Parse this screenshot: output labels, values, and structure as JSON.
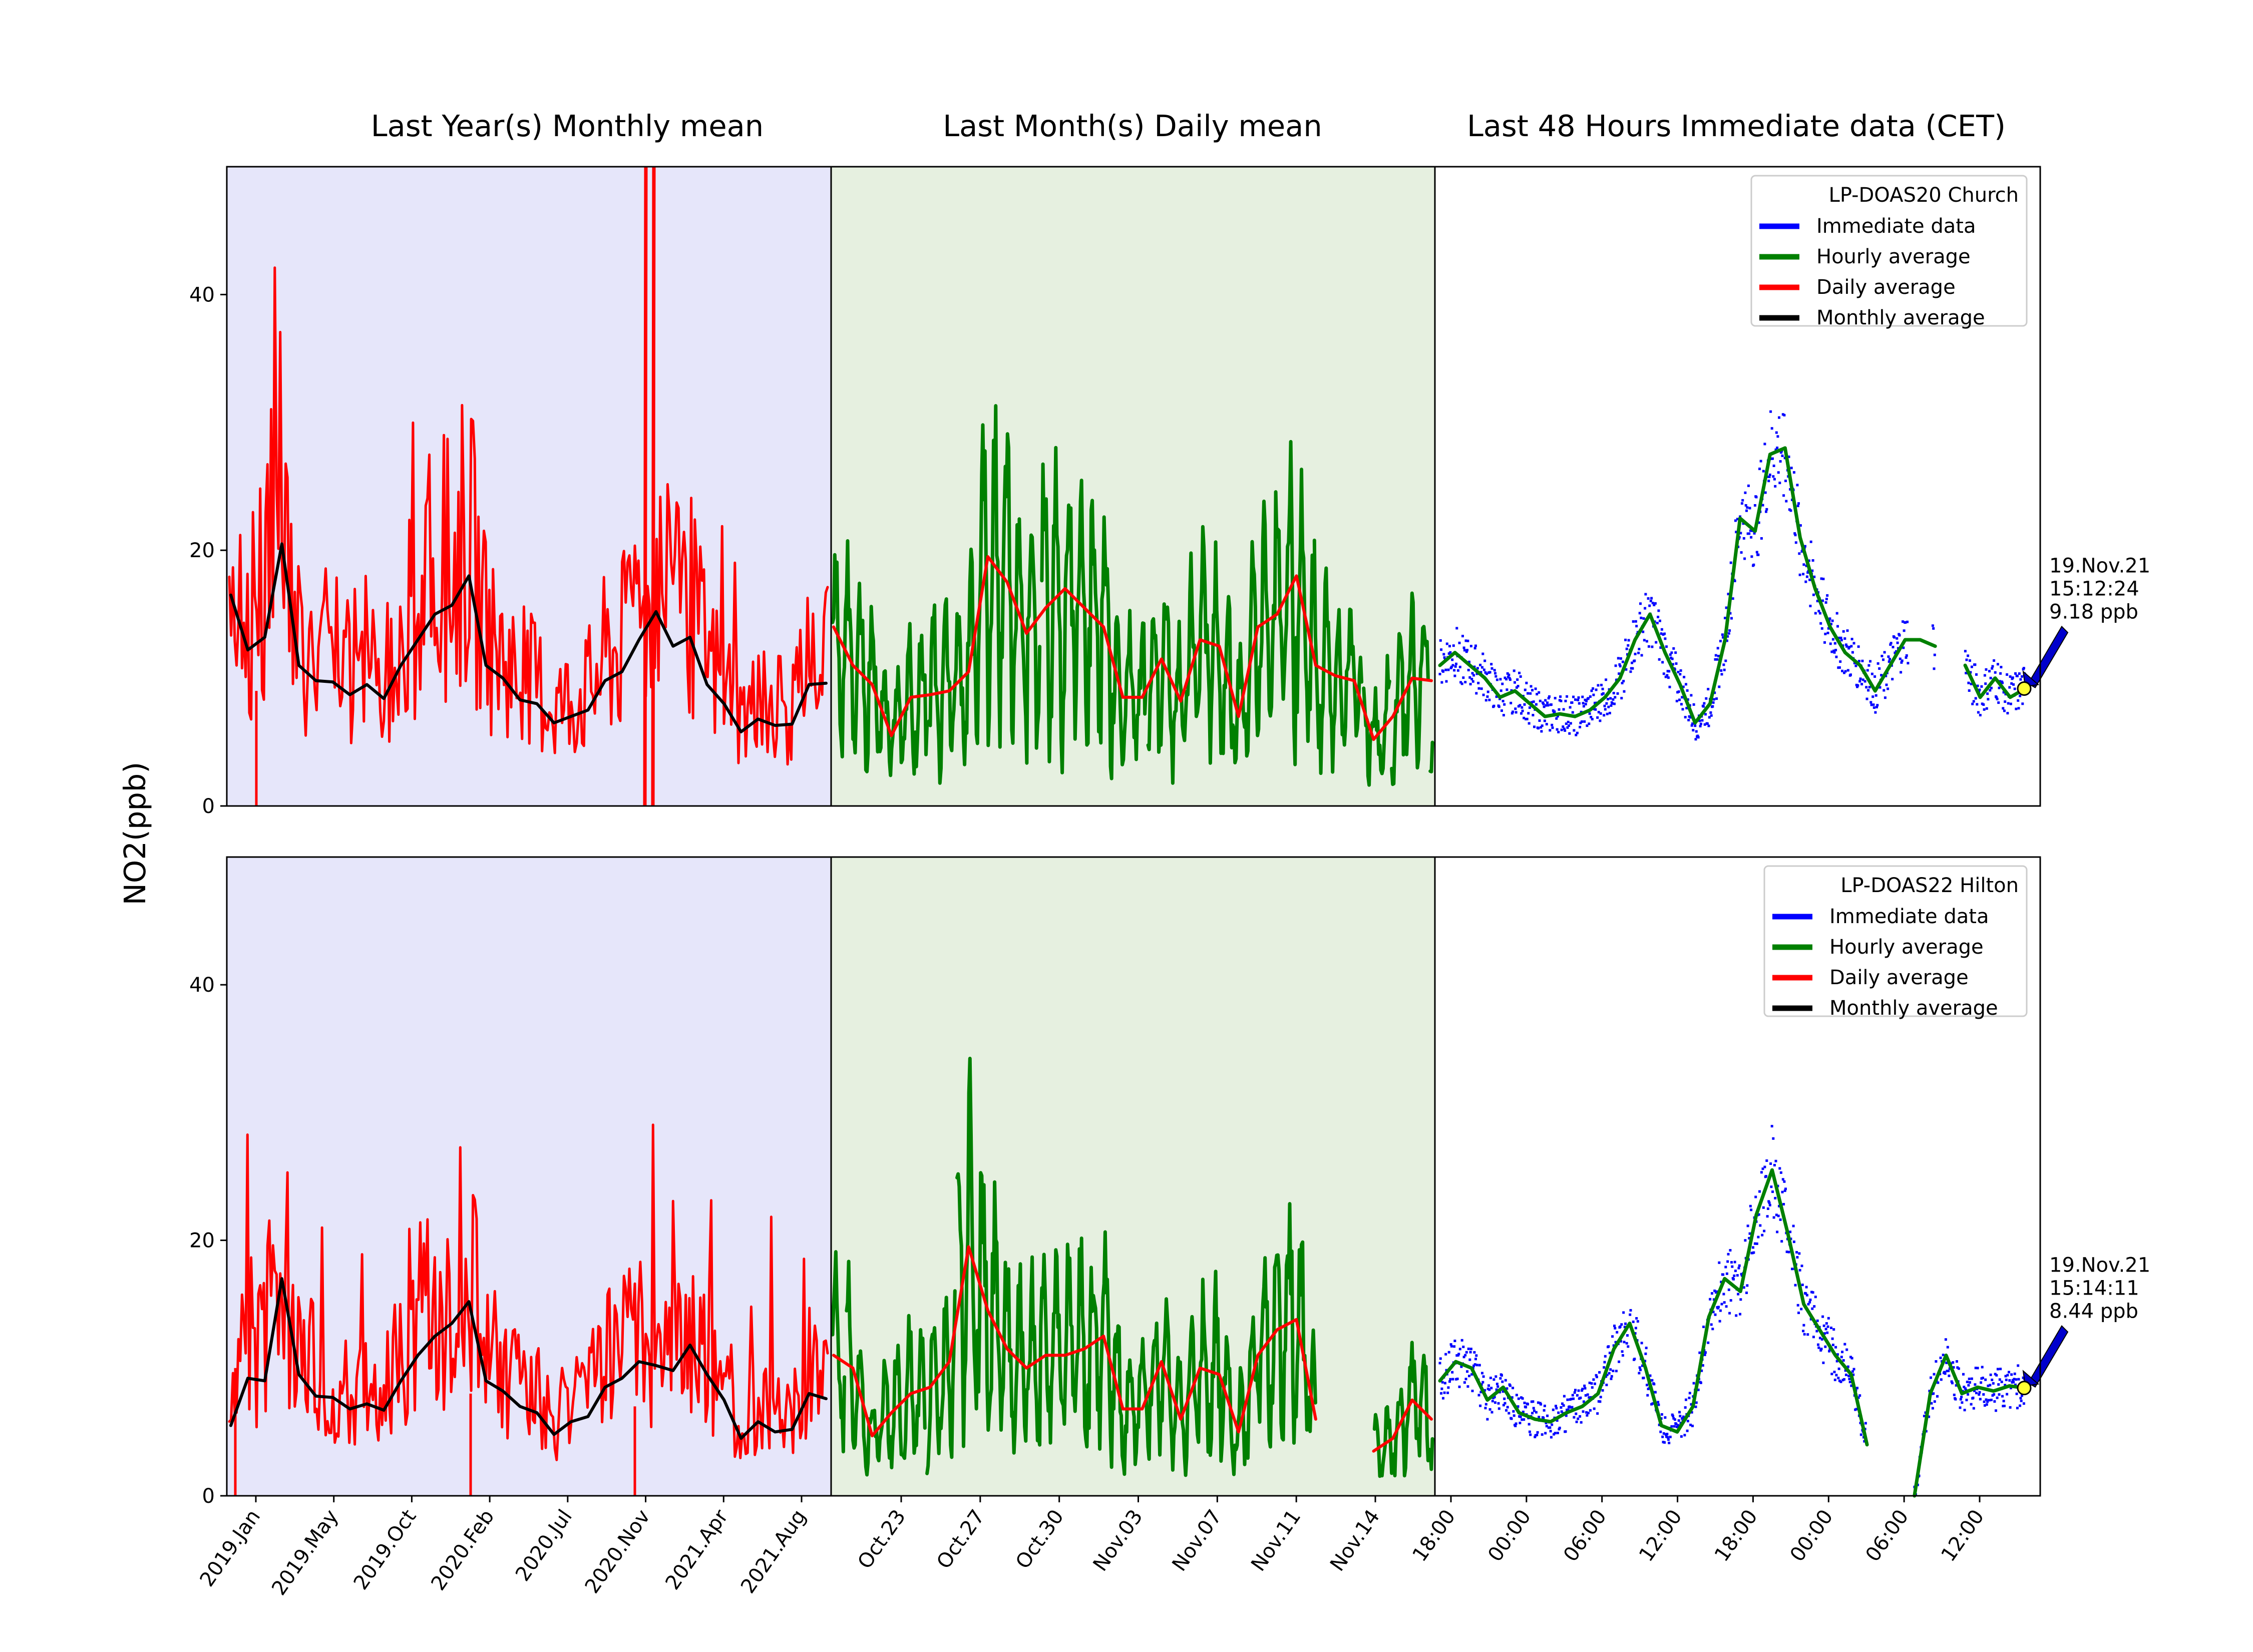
{
  "titles": {
    "monthly": "Last Year(s) Monthly mean",
    "daily": "Last Month(s) Daily mean",
    "immediate": "Last 48 Hours Immediate data (CET)"
  },
  "ylabel": "NO2(ppb)",
  "colors": {
    "immediate": "#0000ff",
    "hourly": "#008000",
    "daily": "#ff0000",
    "monthly": "#000000",
    "bg_monthly": "#e6e6fa",
    "bg_daily": "#e6f0e0",
    "marker": "#ffff33",
    "arrow": "#0000cc"
  },
  "x_ticks": {
    "monthly": [
      "2019.Jan",
      "2019.May",
      "2019.Oct",
      "2020.Feb",
      "2020.Jul",
      "2020.Nov",
      "2021.Apr",
      "2021.Aug"
    ],
    "daily": [
      "Oct.23",
      "Oct.27",
      "Oct.30",
      "Nov.03",
      "Nov.07",
      "Nov.11",
      "Nov.14"
    ],
    "immediate": [
      "18:00",
      "00:00",
      "06:00",
      "12:00",
      "18:00",
      "00:00",
      "06:00",
      "12:00"
    ]
  },
  "legend_entries": [
    "Immediate data",
    "Hourly average",
    "Daily average",
    "Monthly average"
  ],
  "chart_data": [
    {
      "type": "line",
      "station": "LP-DOAS20 Church",
      "ylim": [
        0,
        50
      ],
      "yticks": [
        0,
        20,
        40
      ],
      "grid": false,
      "legend_position": "top-right",
      "monthly_avg": [
        16.5,
        12.2,
        13.2,
        20.5,
        11.0,
        9.8,
        9.7,
        8.7,
        9.5,
        8.4,
        11.0,
        13.0,
        15.0,
        15.7,
        18.0,
        11.0,
        10.0,
        8.3,
        8.0,
        6.5,
        7.0,
        7.5,
        9.8,
        10.5,
        13.0,
        15.2,
        12.5,
        13.2,
        9.5,
        8.0,
        5.8,
        6.8,
        6.3,
        6.4,
        9.5,
        9.6
      ],
      "daily_avg": [
        14.0,
        11.0,
        9.5,
        5.5,
        8.5,
        8.7,
        9.0,
        10.5,
        19.5,
        17.5,
        13.5,
        15.5,
        17.0,
        15.5,
        14.0,
        8.5,
        8.5,
        11.5,
        8.2,
        13.0,
        12.5,
        7.0,
        14.0,
        15.0,
        18.0,
        11.0,
        10.2,
        9.8,
        5.2,
        7.0,
        10.0,
        9.8
      ],
      "hourly_48h": [
        11.0,
        12.0,
        11.0,
        10.0,
        8.5,
        9.0,
        8.0,
        7.0,
        7.2,
        7.0,
        7.5,
        8.5,
        10.0,
        13.0,
        15.0,
        12.0,
        9.5,
        6.5,
        8.0,
        13.0,
        22.5,
        21.5,
        27.5,
        28.0,
        21.0,
        17.0,
        14.0,
        12.0,
        11.0,
        9.0,
        11.0,
        13.0,
        13.0,
        12.5,
        null,
        11.0,
        8.5,
        10.0,
        8.5,
        9.18
      ],
      "latest_reading": {
        "date": "19.Nov.21",
        "time": "15:12:24",
        "value_label": "9.18 ppb",
        "value": 9.18
      }
    },
    {
      "type": "line",
      "station": "LP-DOAS22 Hilton",
      "ylim": [
        0,
        50
      ],
      "yticks": [
        0,
        20,
        40
      ],
      "grid": false,
      "legend_position": "top-right",
      "monthly_avg": [
        5.5,
        9.2,
        9.0,
        17.0,
        9.5,
        7.8,
        7.7,
        6.8,
        7.2,
        6.7,
        9.0,
        11.0,
        12.5,
        13.5,
        15.2,
        9.0,
        8.2,
        7.0,
        6.5,
        4.8,
        5.8,
        6.2,
        8.5,
        9.2,
        10.5,
        10.2,
        9.8,
        11.8,
        9.5,
        7.5,
        4.5,
        5.8,
        5.0,
        5.2,
        8.0,
        7.6
      ],
      "daily_avg": [
        11.0,
        10.0,
        4.7,
        6.5,
        8.0,
        8.5,
        10.5,
        19.5,
        14.5,
        11.5,
        10.0,
        11.0,
        11.0,
        11.5,
        12.5,
        6.8,
        6.8,
        10.5,
        6.0,
        10.0,
        9.5,
        5.0,
        11.0,
        13.0,
        13.8,
        6.0,
        null,
        null,
        3.5,
        4.5,
        7.5,
        6.0
      ],
      "hourly_48h": [
        9.0,
        10.5,
        10.0,
        7.5,
        8.5,
        6.5,
        6.0,
        5.8,
        6.5,
        7.0,
        8.0,
        11.5,
        13.5,
        10.0,
        5.5,
        5.0,
        7.0,
        14.0,
        17.0,
        16.0,
        22.0,
        25.5,
        20.5,
        15.0,
        13.0,
        11.0,
        9.5,
        4.0,
        null,
        null,
        0.0,
        8.0,
        11.0,
        8.0,
        8.5,
        8.2,
        8.6,
        8.44
      ],
      "latest_reading": {
        "date": "19.Nov.21",
        "time": "15:14:11",
        "value_label": "8.44 ppb",
        "value": 8.44
      }
    }
  ]
}
